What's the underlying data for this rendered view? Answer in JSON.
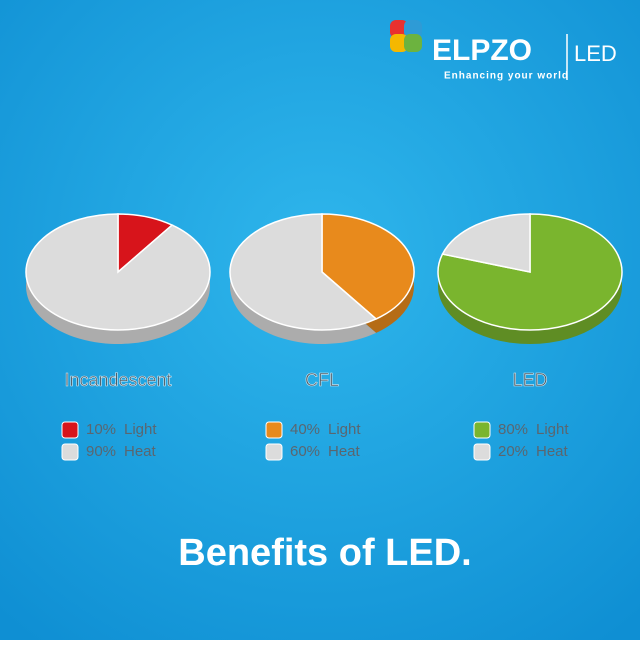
{
  "header": {
    "brand": "ELPZO",
    "product": "LED",
    "tagline": "Enhancing your world"
  },
  "chart_data": [
    {
      "type": "pie",
      "title": "Incandescent",
      "categories": [
        "Light",
        "Heat"
      ],
      "values": [
        10,
        90
      ],
      "value_labels": [
        "10%",
        "90%"
      ],
      "colors": [
        "#d7141b",
        "#dcdcdc"
      ]
    },
    {
      "type": "pie",
      "title": "CFL",
      "categories": [
        "Light",
        "Heat"
      ],
      "values": [
        40,
        60
      ],
      "value_labels": [
        "40%",
        "60%"
      ],
      "colors": [
        "#e88a1c",
        "#dcdcdc"
      ]
    },
    {
      "type": "pie",
      "title": "LED",
      "categories": [
        "Light",
        "Heat"
      ],
      "values": [
        80,
        20
      ],
      "value_labels": [
        "80%",
        "20%"
      ],
      "colors": [
        "#7ab52e",
        "#dcdcdc"
      ]
    }
  ],
  "footer": {
    "title": "Benefits of LED."
  }
}
